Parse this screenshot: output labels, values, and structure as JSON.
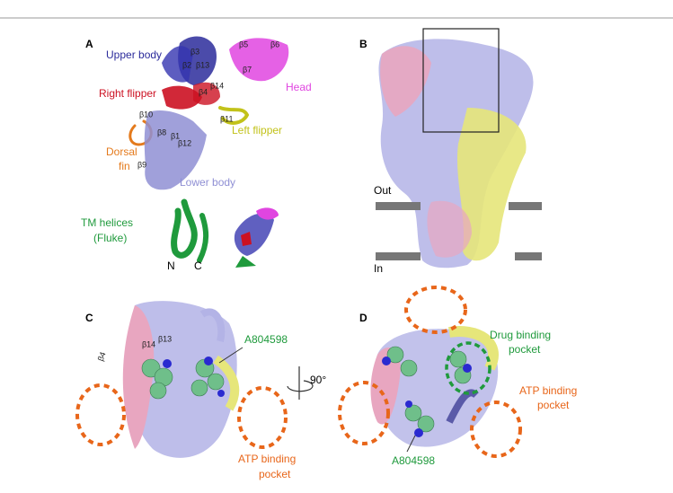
{
  "panels": [
    {
      "label": "A",
      "regions": [
        {
          "lines": [
            "Upper body"
          ],
          "color": "#2b2b9b"
        },
        {
          "lines": [
            "Head"
          ],
          "color": "#e045e0"
        },
        {
          "lines": [
            "Right flipper"
          ],
          "color": "#cc1122"
        },
        {
          "lines": [
            "Left flipper"
          ],
          "color": "#c2c21a"
        },
        {
          "lines": [
            "Dorsal",
            "fin"
          ],
          "color": "#e47a1c"
        },
        {
          "lines": [
            "Lower body"
          ],
          "color": "#8f8fd4"
        },
        {
          "lines": [
            "TM helices",
            "(Fluke)"
          ],
          "color": "#1f9a3c"
        }
      ],
      "strands": [
        "β3",
        "β2",
        "β13",
        "β5",
        "β6",
        "β7",
        "β4",
        "β14",
        "β10",
        "β8",
        "β1",
        "β11",
        "β12",
        "β9"
      ],
      "termini": [
        "N",
        "C"
      ]
    },
    {
      "label": "B",
      "membrane": [
        "Out",
        "In"
      ]
    },
    {
      "label": "C",
      "strands": [
        "β4",
        "β14",
        "β13"
      ],
      "ligand": "A804598",
      "pocket": [
        "ATP binding",
        "pocket"
      ],
      "rotation": "90°"
    },
    {
      "label": "D",
      "drug_pocket": [
        "Drug binding",
        "pocket"
      ],
      "atp_pocket": [
        "ATP binding",
        "pocket"
      ],
      "ligand": "A804598"
    }
  ]
}
